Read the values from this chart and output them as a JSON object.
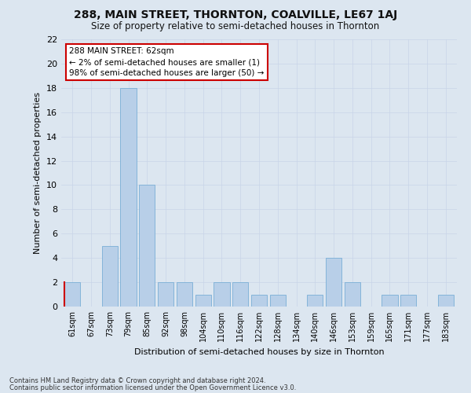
{
  "title": "288, MAIN STREET, THORNTON, COALVILLE, LE67 1AJ",
  "subtitle": "Size of property relative to semi-detached houses in Thornton",
  "xlabel": "Distribution of semi-detached houses by size in Thornton",
  "ylabel": "Number of semi-detached properties",
  "categories": [
    "61sqm",
    "67sqm",
    "73sqm",
    "79sqm",
    "85sqm",
    "92sqm",
    "98sqm",
    "104sqm",
    "110sqm",
    "116sqm",
    "122sqm",
    "128sqm",
    "134sqm",
    "140sqm",
    "146sqm",
    "153sqm",
    "159sqm",
    "165sqm",
    "171sqm",
    "177sqm",
    "183sqm"
  ],
  "values": [
    2,
    0,
    5,
    18,
    10,
    2,
    2,
    1,
    2,
    2,
    1,
    1,
    0,
    1,
    4,
    2,
    0,
    1,
    1,
    0,
    1
  ],
  "bar_color": "#b8cfe8",
  "bar_edge_color": "#7aaed6",
  "highlight_color": "#cc0000",
  "ylim": [
    0,
    22
  ],
  "yticks": [
    0,
    2,
    4,
    6,
    8,
    10,
    12,
    14,
    16,
    18,
    20,
    22
  ],
  "annotation_text": "288 MAIN STREET: 62sqm\n← 2% of semi-detached houses are smaller (1)\n98% of semi-detached houses are larger (50) →",
  "annotation_box_color": "#ffffff",
  "annotation_box_edge": "#cc0000",
  "grid_color": "#c8d4e8",
  "bg_color": "#dce6f0",
  "footnote1": "Contains HM Land Registry data © Crown copyright and database right 2024.",
  "footnote2": "Contains public sector information licensed under the Open Government Licence v3.0."
}
